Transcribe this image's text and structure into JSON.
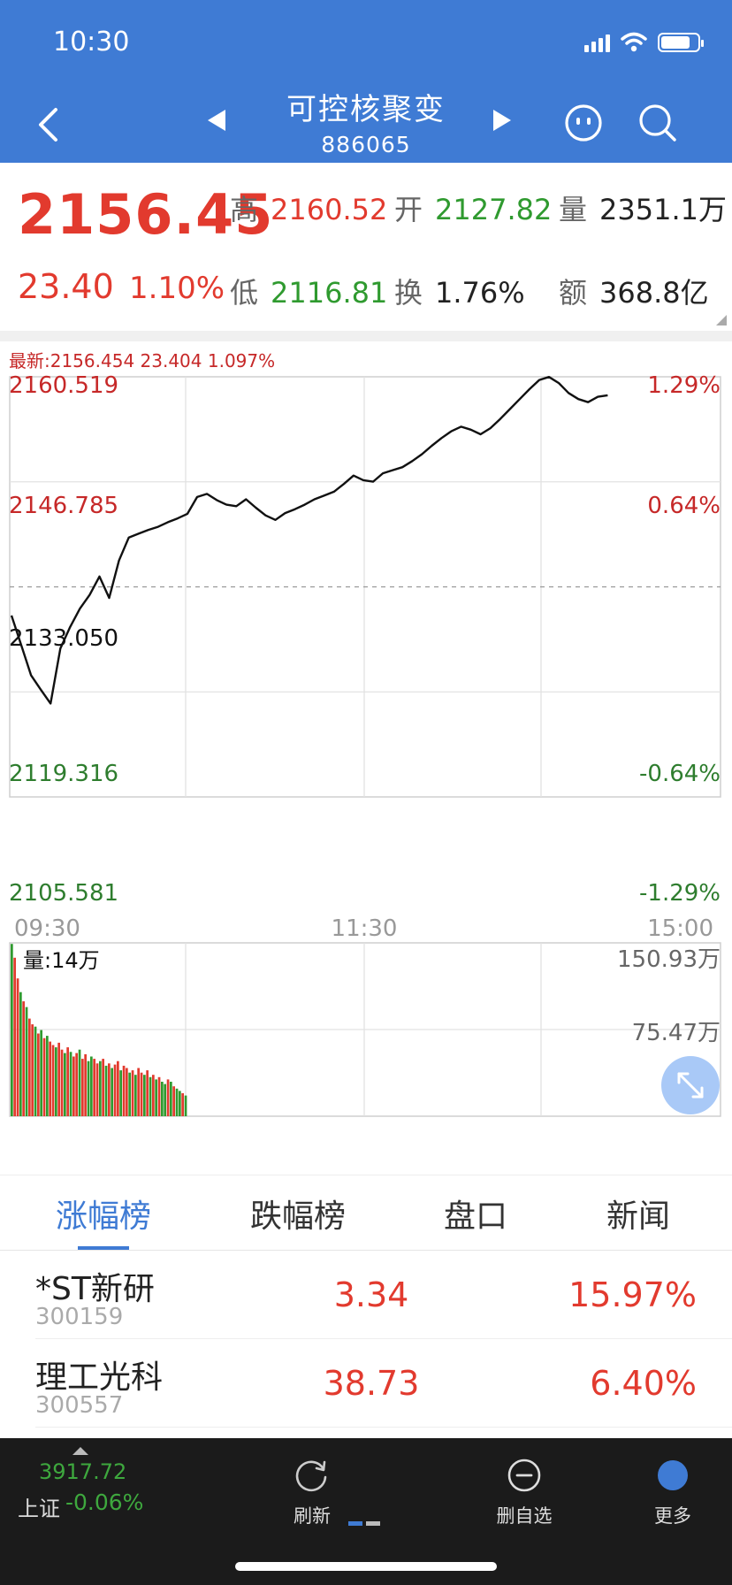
{
  "status_bar": {
    "time": "10:30"
  },
  "header": {
    "title": "可控核聚变",
    "code": "886065"
  },
  "quote": {
    "price": "2156.45",
    "change": "23.40",
    "change_pct": "1.10%",
    "high_label": "高",
    "high": "2160.52",
    "open_label": "开",
    "open": "2127.82",
    "volume_label": "量",
    "volume": "2351.1万",
    "low_label": "低",
    "low": "2116.81",
    "turnover_label": "换",
    "turnover": "1.76%",
    "amount_label": "额",
    "amount": "368.8亿"
  },
  "chart_data": {
    "type": "line",
    "latest_text": "最新:2156.454  23.404  1.097%",
    "y_ticks": [
      "2160.519",
      "2146.785",
      "2133.050",
      "2119.316",
      "2105.581"
    ],
    "y_pct_ticks": [
      "1.29%",
      "0.64%",
      "",
      "-0.64%",
      "-1.29%"
    ],
    "ylim": [
      2105.581,
      2160.519
    ],
    "prev_close": 2133.05,
    "x_ticks": [
      "09:30",
      "11:30",
      "15:00"
    ],
    "series": [
      {
        "values": [
          2129.3,
          2125.4,
          2121.5,
          2119.6,
          2117.8,
          2125.0,
          2127.8,
          2130.2,
          2132.0,
          2134.4,
          2131.6,
          2136.5,
          2139.5,
          2140.0,
          2140.5,
          2140.9,
          2141.5,
          2142.0,
          2142.6,
          2144.8,
          2145.2,
          2144.4,
          2143.8,
          2143.6,
          2144.5,
          2143.4,
          2142.4,
          2141.8,
          2142.7,
          2143.2,
          2143.8,
          2144.5,
          2145.0,
          2145.5,
          2146.5,
          2147.6,
          2147.0,
          2146.8,
          2147.9,
          2148.3,
          2148.7,
          2149.5,
          2150.4,
          2151.5,
          2152.5,
          2153.4,
          2154.0,
          2153.6,
          2153.0,
          2153.8,
          2155.0,
          2156.3,
          2157.6,
          2158.9,
          2160.1,
          2160.5,
          2159.7,
          2158.4,
          2157.6,
          2157.2,
          2157.9,
          2158.1
        ]
      }
    ],
    "volume": {
      "label": "量:14万",
      "y_ticks": [
        "150.93万",
        "75.47万"
      ],
      "max": 150.93,
      "bars": [
        150,
        138,
        120,
        108,
        100,
        95,
        85,
        80,
        78,
        72,
        75,
        68,
        70,
        65,
        62,
        60,
        64,
        58,
        55,
        60,
        56,
        52,
        55,
        58,
        50,
        54,
        48,
        52,
        50,
        46,
        48,
        50,
        44,
        46,
        42,
        45,
        48,
        40,
        44,
        42,
        38,
        40,
        36,
        42,
        38,
        36,
        40,
        34,
        36,
        32,
        34,
        30,
        28,
        32,
        30,
        26,
        24,
        22,
        20,
        18
      ],
      "bar_colors": [
        "g",
        "r",
        "r",
        "g",
        "r",
        "g",
        "r",
        "r",
        "g",
        "r",
        "g",
        "r",
        "g",
        "r",
        "r",
        "g",
        "r",
        "r",
        "g",
        "r",
        "g",
        "r",
        "r",
        "g",
        "r",
        "r",
        "g",
        "g",
        "r",
        "r",
        "g",
        "r",
        "g",
        "r",
        "g",
        "r",
        "r",
        "g",
        "r",
        "r",
        "g",
        "r",
        "g",
        "r",
        "r",
        "g",
        "r",
        "g",
        "r",
        "g",
        "r",
        "g",
        "g",
        "r",
        "g",
        "r",
        "g",
        "g",
        "r",
        "g"
      ]
    },
    "colors": {
      "up": "#e23a2e",
      "down": "#2f9a2f",
      "line": "#111111",
      "grid": "#dddddd"
    }
  },
  "tabs": [
    "涨幅榜",
    "跌幅榜",
    "盘口",
    "新闻"
  ],
  "ranking": [
    {
      "name": "*ST新研",
      "code": "300159",
      "price": "3.34",
      "pct": "15.97%"
    },
    {
      "name": "理工光科",
      "code": "300557",
      "price": "38.73",
      "pct": "6.40%"
    }
  ],
  "bottom_bar": {
    "index_value": "3917.72",
    "index_label": "上证",
    "index_change": "-0.06%",
    "refresh": "刷新",
    "remove_watch": "删自选",
    "more": "更多"
  }
}
